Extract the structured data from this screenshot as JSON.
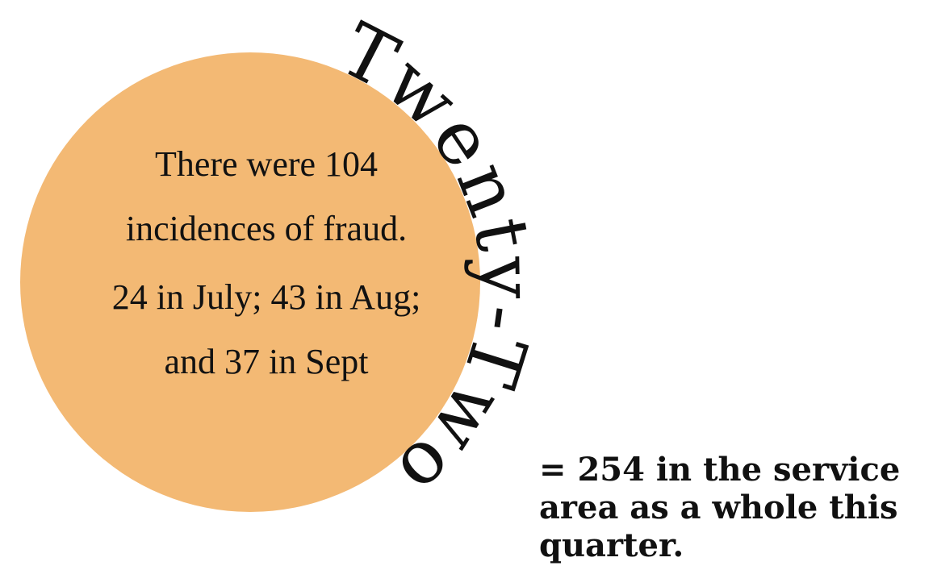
{
  "circle_text": {
    "lines": [
      "There were 104",
      "incidences of fraud.",
      "24 in July; 43 in Aug;",
      "and 37 in Sept"
    ]
  },
  "arc_text": "Twenty-Two",
  "summary": {
    "lines": [
      "= 254 in the service",
      "area as a whole this",
      "quarter."
    ]
  }
}
